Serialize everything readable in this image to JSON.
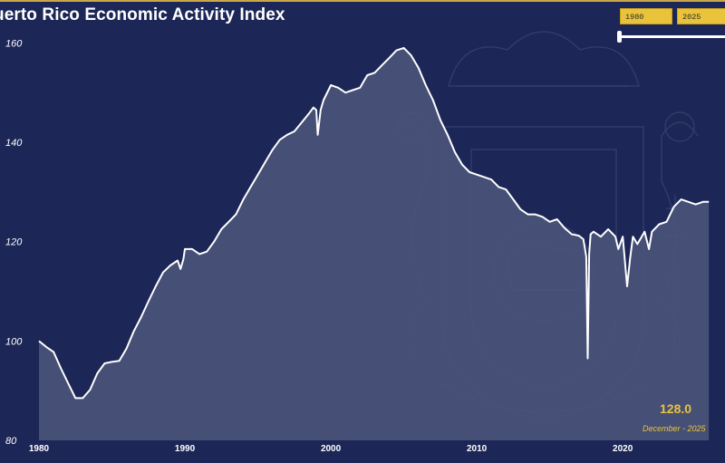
{
  "header": {
    "title": "uerto Rico Economic Activity Index"
  },
  "range": {
    "start_label": "1980",
    "end_label": "2025"
  },
  "callout": {
    "value": "128.0",
    "date": "December - 2025"
  },
  "colors": {
    "background": "#1c2657",
    "area_fill": "#4a5478",
    "line": "#ffffff",
    "accent": "#e9c33a"
  },
  "background_image": "puerto-rico-coat-of-arms-watermark",
  "chart_data": {
    "type": "area",
    "title": "uerto Rico Economic Activity Index",
    "xlabel": "",
    "ylabel": "",
    "xlim": [
      1980,
      2026.2
    ],
    "ylim": [
      80,
      165
    ],
    "x_ticks": [
      "1980",
      "1990",
      "2000",
      "2010",
      "2020"
    ],
    "y_ticks": [
      "80",
      "100",
      "120",
      "140",
      "160"
    ],
    "grid": false,
    "series": [
      {
        "x": [
          1980.0,
          1980.5,
          1981.0,
          1981.5,
          1982.0,
          1982.5,
          1983.0,
          1983.5,
          1984.0,
          1984.5,
          1985.0,
          1985.5,
          1986.0,
          1986.5,
          1987.0,
          1987.5,
          1988.0,
          1988.5,
          1989.0,
          1989.5,
          1989.7,
          1989.9,
          1990.0,
          1990.5,
          1991.0,
          1991.5,
          1992.0,
          1992.5,
          1993.0,
          1993.5,
          1994.0,
          1994.5,
          1995.0,
          1995.5,
          1996.0,
          1996.5,
          1997.0,
          1997.5,
          1998.0,
          1998.5,
          1998.8,
          1999.0,
          1999.1,
          1999.3,
          1999.5,
          2000.0,
          2000.5,
          2001.0,
          2001.5,
          2002.0,
          2002.5,
          2003.0,
          2003.5,
          2004.0,
          2004.5,
          2005.0,
          2005.5,
          2006.0,
          2006.5,
          2007.0,
          2007.5,
          2008.0,
          2008.5,
          2009.0,
          2009.5,
          2010.0,
          2010.5,
          2011.0,
          2011.5,
          2012.0,
          2012.5,
          2013.0,
          2013.5,
          2014.0,
          2014.5,
          2015.0,
          2015.5,
          2016.0,
          2016.5,
          2017.0,
          2017.3,
          2017.5,
          2017.6,
          2017.7,
          2017.8,
          2018.0,
          2018.5,
          2019.0,
          2019.5,
          2019.7,
          2020.0,
          2020.3,
          2020.5,
          2020.7,
          2021.0,
          2021.5,
          2021.8,
          2022.0,
          2022.5,
          2023.0,
          2023.5,
          2024.0,
          2024.5,
          2025.0,
          2025.5,
          2025.9
        ],
        "values": [
          100.0,
          98.8,
          97.8,
          94.5,
          91.5,
          88.5,
          88.5,
          90.2,
          93.5,
          95.5,
          95.8,
          96.0,
          98.5,
          102.0,
          104.8,
          108.0,
          111.0,
          113.8,
          115.2,
          116.2,
          114.5,
          116.5,
          118.5,
          118.5,
          117.5,
          118.0,
          120.0,
          122.5,
          124.0,
          125.5,
          128.5,
          131.0,
          133.5,
          136.0,
          138.5,
          140.5,
          141.5,
          142.2,
          144.0,
          145.8,
          147.0,
          146.5,
          141.5,
          146.5,
          148.5,
          151.5,
          151.0,
          150.0,
          150.5,
          151.0,
          153.5,
          154.0,
          155.5,
          157.0,
          158.5,
          159.0,
          157.5,
          155.0,
          151.5,
          148.5,
          144.5,
          141.5,
          138.0,
          135.5,
          134.0,
          133.5,
          133.0,
          132.5,
          131.0,
          130.5,
          128.5,
          126.5,
          125.5,
          125.5,
          125.0,
          124.0,
          124.5,
          122.8,
          121.5,
          121.2,
          120.5,
          117.0,
          96.5,
          117.5,
          121.5,
          122.0,
          121.0,
          122.5,
          121.0,
          118.5,
          121.0,
          111.0,
          116.5,
          121.0,
          119.5,
          122.0,
          118.5,
          122.0,
          123.5,
          124.0,
          127.0,
          128.5,
          128.0,
          127.5,
          128.0,
          128.0
        ]
      }
    ]
  }
}
